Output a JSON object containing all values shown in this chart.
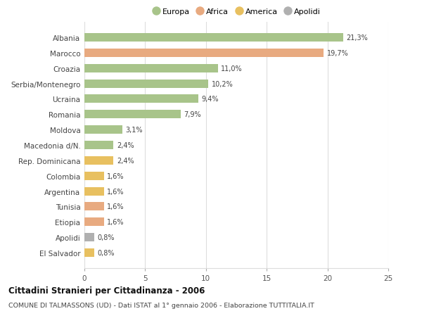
{
  "categories": [
    "Albania",
    "Marocco",
    "Croazia",
    "Serbia/Montenegro",
    "Ucraina",
    "Romania",
    "Moldova",
    "Macedonia d/N.",
    "Rep. Dominicana",
    "Colombia",
    "Argentina",
    "Tunisia",
    "Etiopia",
    "Apolidi",
    "El Salvador"
  ],
  "values": [
    21.3,
    19.7,
    11.0,
    10.2,
    9.4,
    7.9,
    3.1,
    2.4,
    2.4,
    1.6,
    1.6,
    1.6,
    1.6,
    0.8,
    0.8
  ],
  "labels": [
    "21,3%",
    "19,7%",
    "11,0%",
    "10,2%",
    "9,4%",
    "7,9%",
    "3,1%",
    "2,4%",
    "2,4%",
    "1,6%",
    "1,6%",
    "1,6%",
    "1,6%",
    "0,8%",
    "0,8%"
  ],
  "bar_colors": [
    "#a8c48a",
    "#e8aa80",
    "#a8c48a",
    "#a8c48a",
    "#a8c48a",
    "#a8c48a",
    "#a8c48a",
    "#a8c48a",
    "#e8c060",
    "#e8c060",
    "#e8c060",
    "#e8aa80",
    "#e8aa80",
    "#b0b0b0",
    "#e8c060"
  ],
  "legend_labels": [
    "Europa",
    "Africa",
    "America",
    "Apolidi"
  ],
  "legend_colors": [
    "#a8c48a",
    "#e8aa80",
    "#e8c060",
    "#b0b0b0"
  ],
  "title": "Cittadini Stranieri per Cittadinanza - 2006",
  "subtitle": "COMUNE DI TALMASSONS (UD) - Dati ISTAT al 1° gennaio 2006 - Elaborazione TUTTITALIA.IT",
  "xlim": [
    0,
    25
  ],
  "xticks": [
    0,
    5,
    10,
    15,
    20,
    25
  ],
  "background_color": "#ffffff",
  "grid_color": "#dddddd"
}
